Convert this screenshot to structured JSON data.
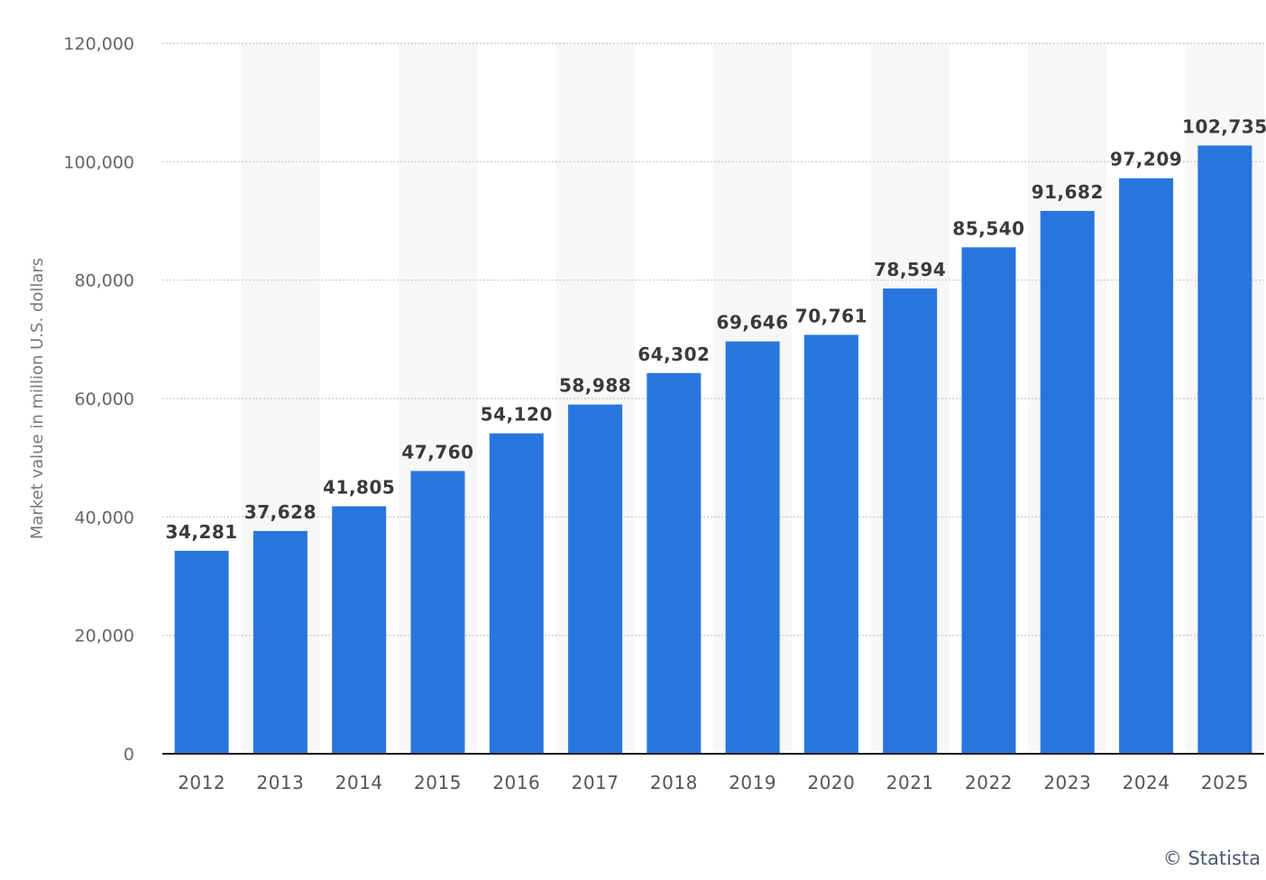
{
  "chart_data": {
    "type": "bar",
    "categories": [
      "2012",
      "2013",
      "2014",
      "2015",
      "2016",
      "2017",
      "2018",
      "2019",
      "2020",
      "2021",
      "2022",
      "2023",
      "2024",
      "2025"
    ],
    "values": [
      34281,
      37628,
      41805,
      47760,
      54120,
      58988,
      64302,
      69646,
      70761,
      78594,
      85540,
      91682,
      97209,
      102735
    ],
    "value_labels": [
      "34,281",
      "37,628",
      "41,805",
      "47,760",
      "54,120",
      "58,988",
      "64,302",
      "69,646",
      "70,761",
      "78,594",
      "85,540",
      "91,682",
      "97,209",
      "102,735"
    ],
    "ylabel": "Market value in million U.S. dollars",
    "xlabel": "",
    "ylim": [
      0,
      120000
    ],
    "yticks": [
      0,
      20000,
      40000,
      60000,
      80000,
      100000,
      120000
    ],
    "ytick_labels": [
      "0",
      "20,000",
      "40,000",
      "60,000",
      "80,000",
      "100,000",
      "120,000"
    ],
    "grid": true,
    "bar_color": "#2876dd",
    "band_color": "#f7f7f7",
    "grid_color": "#c4c4c4",
    "baseline_color": "#1a1a1a"
  },
  "credit": "© Statista"
}
